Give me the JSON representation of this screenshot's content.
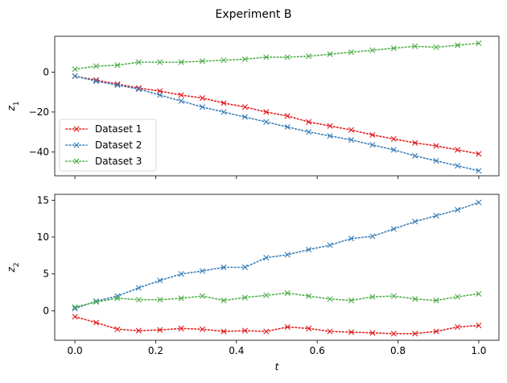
{
  "figure": {
    "suptitle": "Experiment B"
  },
  "chart_data": [
    {
      "type": "line",
      "title": "",
      "xlabel": "",
      "ylabel": "z_1",
      "ylabel_main": "z",
      "ylabel_sub": "1",
      "xlim": [
        -0.05,
        1.05
      ],
      "ylim": [
        -52,
        18
      ],
      "xticks": [
        0.0,
        0.2,
        0.4,
        0.6,
        0.8,
        1.0
      ],
      "xtick_labels_visible": false,
      "yticks": [
        0,
        -20,
        -40
      ],
      "ytick_labels": [
        "0",
        "−20",
        "−40"
      ],
      "legend": {
        "placement": "lower-left"
      },
      "x": [
        0.0,
        0.0526,
        0.1053,
        0.1579,
        0.2105,
        0.2632,
        0.3158,
        0.3684,
        0.4211,
        0.4737,
        0.5263,
        0.5789,
        0.6316,
        0.6842,
        0.7368,
        0.7895,
        0.8421,
        0.8947,
        0.9474,
        1.0
      ],
      "series": [
        {
          "name": "Dataset 1",
          "color": "#e41a1c",
          "values": [
            -2.0,
            -4.0,
            -6.0,
            -8.0,
            -9.5,
            -11.5,
            -13.0,
            -15.5,
            -17.5,
            -20.0,
            -22.0,
            -25.0,
            -27.0,
            -29.0,
            -31.5,
            -33.5,
            -35.5,
            -37.0,
            -39.0,
            -41.0
          ]
        },
        {
          "name": "Dataset 2",
          "color": "#377eb8",
          "values": [
            -2.0,
            -4.5,
            -6.5,
            -8.5,
            -11.5,
            -14.5,
            -17.5,
            -20.0,
            -22.5,
            -25.0,
            -27.5,
            -30.0,
            -32.0,
            -34.0,
            -36.5,
            -39.0,
            -42.0,
            -44.5,
            -47.0,
            -49.5
          ]
        },
        {
          "name": "Dataset 3",
          "color": "#4daf4a",
          "values": [
            1.5,
            3.0,
            3.5,
            5.0,
            5.0,
            5.0,
            5.5,
            6.0,
            6.5,
            7.5,
            7.5,
            8.0,
            9.0,
            10.0,
            11.0,
            12.0,
            13.0,
            12.5,
            13.5,
            14.5
          ]
        }
      ]
    },
    {
      "type": "line",
      "title": "",
      "xlabel": "t",
      "ylabel": "z_2",
      "ylabel_main": "z",
      "ylabel_sub": "2",
      "xlim": [
        -0.05,
        1.05
      ],
      "ylim": [
        -4.0,
        15.8
      ],
      "xticks": [
        0.0,
        0.2,
        0.4,
        0.6,
        0.8,
        1.0
      ],
      "xtick_labels": [
        "0.0",
        "0.2",
        "0.4",
        "0.6",
        "0.8",
        "1.0"
      ],
      "yticks": [
        0,
        5,
        10,
        15
      ],
      "ytick_labels": [
        "0",
        "5",
        "10",
        "15"
      ],
      "x": [
        0.0,
        0.0526,
        0.1053,
        0.1579,
        0.2105,
        0.2632,
        0.3158,
        0.3684,
        0.4211,
        0.4737,
        0.5263,
        0.5789,
        0.6316,
        0.6842,
        0.7368,
        0.7895,
        0.8421,
        0.8947,
        0.9474,
        1.0
      ],
      "series": [
        {
          "name": "Dataset 1",
          "color": "#e41a1c",
          "values": [
            -0.8,
            -1.6,
            -2.5,
            -2.7,
            -2.6,
            -2.4,
            -2.5,
            -2.8,
            -2.7,
            -2.8,
            -2.2,
            -2.4,
            -2.8,
            -2.9,
            -3.0,
            -3.1,
            -3.1,
            -2.8,
            -2.2,
            -2.0
          ]
        },
        {
          "name": "Dataset 2",
          "color": "#377eb8",
          "values": [
            0.3,
            1.3,
            2.0,
            3.1,
            4.1,
            5.0,
            5.4,
            5.9,
            5.9,
            7.2,
            7.6,
            8.3,
            8.9,
            9.8,
            10.1,
            11.1,
            12.1,
            12.9,
            13.7,
            14.7
          ]
        },
        {
          "name": "Dataset 3",
          "color": "#4daf4a",
          "values": [
            0.5,
            1.2,
            1.7,
            1.5,
            1.5,
            1.7,
            2.0,
            1.4,
            1.8,
            2.1,
            2.4,
            2.0,
            1.6,
            1.4,
            1.9,
            2.0,
            1.6,
            1.4,
            1.9,
            2.3
          ]
        }
      ]
    }
  ]
}
